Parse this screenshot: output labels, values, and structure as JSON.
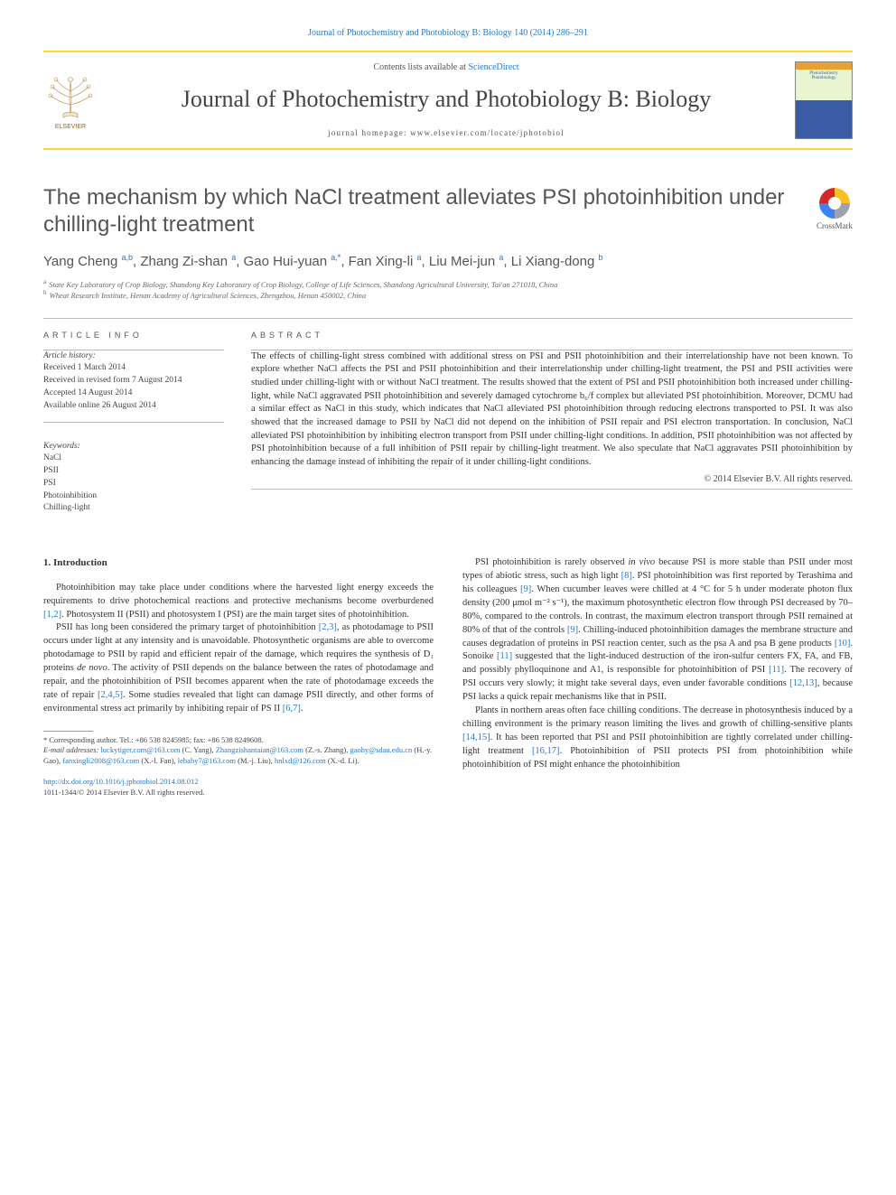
{
  "top_citation": "Journal of Photochemistry and Photobiology B: Biology 140 (2014) 286–291",
  "masthead": {
    "contents_prefix": "Contents lists available at ",
    "contents_link": "ScienceDirect",
    "journal_name": "Journal of Photochemistry and Photobiology B: Biology",
    "homepage_line": "journal homepage: www.elsevier.com/locate/jphotobiol",
    "elsevier_label": "ELSEVIER",
    "cover_line1": "Photochemistry",
    "cover_line2": "Photobiology"
  },
  "article": {
    "title": "The mechanism by which NaCl treatment alleviates PSI photoinhibition under chilling-light treatment",
    "crossmark_label": "CrossMark",
    "authors_html": "Yang Cheng <sup>a,b</sup>, Zhang Zi-shan <sup>a</sup>, Gao Hui-yuan <sup>a,</sup><sup class='star'>*</sup>, Fan Xing-li <sup>a</sup>, Liu Mei-jun <sup>a</sup>, Li Xiang-dong <sup>b</sup>",
    "affiliations": {
      "a": "State Key Laboratory of Crop Biology, Shandong Key Laboratary of Crop Biology, College of Life Sciences, Shandong Agricultural University, Tai'an 271018, China",
      "b": "Wheat Research Institute, Henan Academy of Agricultural Sciences, Zhengzhou, Henan 450002, China"
    }
  },
  "info": {
    "section_label": "ARTICLE INFO",
    "history_label": "Article history:",
    "history": [
      "Received 1 March 2014",
      "Received in revised form 7 August 2014",
      "Accepted 14 August 2014",
      "Available online 26 August 2014"
    ],
    "keywords_label": "Keywords:",
    "keywords": [
      "NaCl",
      "PSII",
      "PSI",
      "Photoinhibition",
      "Chilling-light"
    ]
  },
  "abstract": {
    "section_label": "ABSTRACT",
    "text": "The effects of chilling-light stress combined with additional stress on PSI and PSII photoinhibition and their interrelationship have not been known. To explore whether NaCl affects the PSI and PSII photoinhibition and their interrelationship under chilling-light treatment, the PSI and PSII activities were studied under chilling-light with or without NaCl treatment. The results showed that the extent of PSI and PSII photoinhibition both increased under chilling-light, while NaCl aggravated PSII photoinhibition and severely damaged cytochrome b₆/f complex but alleviated PSI photoinhibition. Moreover, DCMU had a similar effect as NaCl in this study, which indicates that NaCl alleviated PSI photoinhibition through reducing electrons transported to PSI. It was also showed that the increased damage to PSII by NaCl did not depend on the inhibition of PSII repair and PSI electron transportation. In conclusion, NaCl alleviated PSI photoinhibition by inhibiting electron transport from PSII under chilling-light conditions. In addition, PSII photoinhibition was not affected by PSI photoinhibition because of a full inhibition of PSII repair by chilling-light treatment. We also speculate that NaCl aggravates PSII photoinhibition by enhancing the damage instead of inhibiting the repair of it under chilling-light conditions.",
    "copyright": "© 2014 Elsevier B.V. All rights reserved."
  },
  "intro": {
    "heading": "1. Introduction",
    "col1": {
      "p1_a": "Photoinhibition may take place under conditions where the harvested light energy exceeds the requirements to drive photochemical reactions and protective mechanisms become overburdened ",
      "p1_ref1": "[1,2]",
      "p1_b": ". Photosystem II (PSII) and photosystem I (PSI) are the main target sites of photoinhibition.",
      "p2_a": "PSII has long been considered the primary target of photoinhibition ",
      "p2_ref1": "[2,3]",
      "p2_b": ", as photodamage to PSII occurs under light at any intensity and is unavoidable. Photosynthetic organisms are able to overcome photodamage to PSII by rapid and efficient repair of the damage, which requires the synthesis of D₁ proteins ",
      "p2_em": "de novo",
      "p2_c": ". The activity of PSII depends on the balance between the rates of photodamage and repair, and the photoinhibition of PSII becomes apparent when the rate of photodamage exceeds the rate of repair ",
      "p2_ref2": "[2,4,5]",
      "p2_d": ". Some studies revealed that light can damage PSII directly, and other forms of environmental stress act primarily by inhibiting repair of PS II ",
      "p2_ref3": "[6,7]",
      "p2_e": "."
    },
    "col2": {
      "p1_a": "PSI photoinhibition is rarely observed ",
      "p1_em1": "in vivo",
      "p1_b": " because PSI is more stable than PSII under most types of abiotic stress, such as high light ",
      "p1_ref1": "[8]",
      "p1_c": ". PSI photoinhibition was first reported by Terashima and his colleagues ",
      "p1_ref2": "[9]",
      "p1_d": ". When cucumber leaves were chilled at 4 °C for 5 h under moderate photon flux density (200 μmol m⁻² s⁻¹), the maximum photosynthetic electron flow through PSI decreased by 70–80%, compared to the controls. In contrast, the maximum electron transport through PSII remained at 80% of that of the controls ",
      "p1_ref3": "[9]",
      "p1_e": ". Chilling-induced photoinhibition damages the membrane structure and causes degradation of proteins in PSI reaction center, such as the psa A and psa B gene products ",
      "p1_ref4": "[10]",
      "p1_f": ". Sonoike ",
      "p1_ref5": "[11]",
      "p1_g": " suggested that the light-induced destruction of the iron-sulfur centers FX, FA, and FB, and possibly phylloquinone and A1, is responsible for photoinhibition of PSI ",
      "p1_ref6": "[11]",
      "p1_h": ". The recovery of PSI occurs very slowly; it might take several days, even under favorable conditions ",
      "p1_ref7": "[12,13]",
      "p1_i": ", because PSI lacks a quick repair mechanisms like that in PSII.",
      "p2_a": "Plants in northern areas often face chilling conditions. The decrease in photosynthesis induced by a chilling environment is the primary reason limiting the lives and growth of chilling-sensitive plants ",
      "p2_ref1": "[14,15]",
      "p2_b": ". It has been reported that PSI and PSII photoinhibition are tightly correlated under chilling-light treatment ",
      "p2_ref2": "[16,17]",
      "p2_c": ". Photoinhibition of PSII protects PSI from photoinhibition while photoinhibition of PSI might enhance the photoinhibition"
    }
  },
  "footnotes": {
    "corresponding": "* Corresponding author. Tel.: +86 538 8245985; fax: +86 538 8249608.",
    "emails_label": "E-mail addresses:",
    "emails": [
      {
        "addr": "luckytiger.com@163.com",
        "who": "(C. Yang)"
      },
      {
        "addr": "Zhangzishantaian@163.com",
        "who": "(Z.-s. Zhang)"
      },
      {
        "addr": "gaohy@sdau.edu.cn",
        "who": "(H.-y. Gao)"
      },
      {
        "addr": "fanxingli2008@163.com",
        "who": "(X.-l. Fan)"
      },
      {
        "addr": "lebaby7@163.com",
        "who": "(M.-j. Liu)"
      },
      {
        "addr": "hnlxd@126.com",
        "who": "(X.-d. Li)"
      }
    ]
  },
  "doi": {
    "url": "http://dx.doi.org/10.1016/j.jphotobiol.2014.08.012",
    "issn_line": "1011-1344/© 2014 Elsevier B.V. All rights reserved."
  },
  "colors": {
    "link": "#2878c8",
    "rule_yellow": "#fdd835",
    "text": "#333333",
    "text_muted": "#555555"
  }
}
